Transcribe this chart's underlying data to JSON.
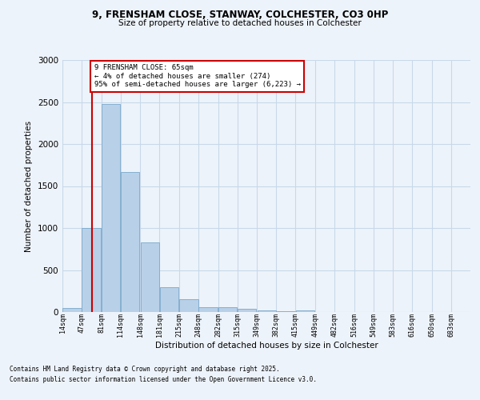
{
  "title1": "9, FRENSHAM CLOSE, STANWAY, COLCHESTER, CO3 0HP",
  "title2": "Size of property relative to detached houses in Colchester",
  "xlabel": "Distribution of detached houses by size in Colchester",
  "ylabel": "Number of detached properties",
  "footnote1": "Contains HM Land Registry data © Crown copyright and database right 2025.",
  "footnote2": "Contains public sector information licensed under the Open Government Licence v3.0.",
  "annotation_line1": "9 FRENSHAM CLOSE: 65sqm",
  "annotation_line2": "← 4% of detached houses are smaller (274)",
  "annotation_line3": "95% of semi-detached houses are larger (6,223) →",
  "bar_left_edges": [
    14,
    47,
    81,
    114,
    148,
    181,
    215,
    248,
    282,
    315,
    349,
    382,
    415,
    449,
    482,
    516,
    549,
    583,
    616,
    650
  ],
  "bar_widths": [
    33,
    33,
    33,
    33,
    33,
    33,
    33,
    33,
    33,
    33,
    33,
    33,
    33,
    33,
    33,
    33,
    33,
    33,
    33,
    33
  ],
  "bar_heights": [
    50,
    1000,
    2480,
    1670,
    830,
    300,
    155,
    60,
    55,
    35,
    20,
    5,
    15,
    0,
    0,
    0,
    0,
    0,
    0,
    0
  ],
  "bar_color": "#b8d0e8",
  "bar_edge_color": "#7aa8cc",
  "grid_color": "#c8d8ea",
  "bg_color": "#edf3fa",
  "red_line_x": 65,
  "red_line_color": "#cc0000",
  "annotation_box_color": "#cc0000",
  "ylim": [
    0,
    3000
  ],
  "yticks": [
    0,
    500,
    1000,
    1500,
    2000,
    2500,
    3000
  ],
  "x_tick_labels": [
    "14sqm",
    "47sqm",
    "81sqm",
    "114sqm",
    "148sqm",
    "181sqm",
    "215sqm",
    "248sqm",
    "282sqm",
    "315sqm",
    "349sqm",
    "382sqm",
    "415sqm",
    "449sqm",
    "482sqm",
    "516sqm",
    "549sqm",
    "583sqm",
    "616sqm",
    "650sqm",
    "683sqm"
  ],
  "x_tick_positions": [
    14,
    47,
    81,
    114,
    148,
    181,
    215,
    248,
    282,
    315,
    349,
    382,
    415,
    449,
    482,
    516,
    549,
    583,
    616,
    650,
    683
  ],
  "xlim": [
    14,
    716
  ]
}
